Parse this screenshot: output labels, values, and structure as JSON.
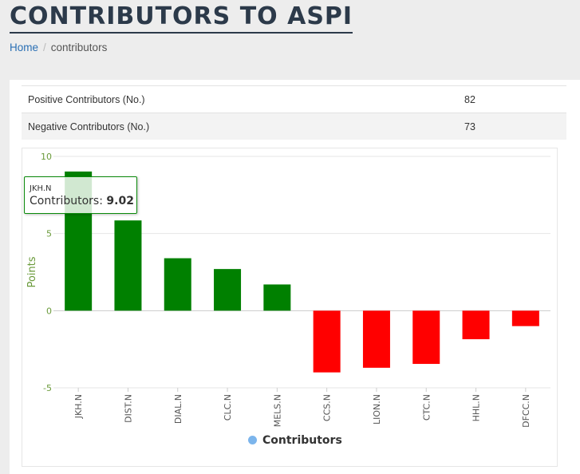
{
  "page": {
    "title": "CONTRIBUTORS TO ASPI",
    "breadcrumb": {
      "home": "Home",
      "separator": "/",
      "current": "contributors"
    }
  },
  "stats": [
    {
      "label": "Positive Contributors (No.)",
      "value": "82"
    },
    {
      "label": "Negative Contributors (No.)",
      "value": "73"
    }
  ],
  "colors": {
    "positive": "#008000",
    "negative": "#ff0000",
    "legend_marker": "#7cb5ec",
    "axis_label": "#6a9a3a"
  },
  "tooltip": {
    "category": "JKH.N",
    "series_label": "Contributors:",
    "value": "9.02"
  },
  "chart_data": {
    "type": "bar",
    "title": "",
    "xlabel": "",
    "ylabel": "Points",
    "ylim": [
      -5,
      10
    ],
    "yticks": [
      10,
      5,
      0,
      -5
    ],
    "categories": [
      "JKH.N",
      "DIST.N",
      "DIAL.N",
      "CLC.N",
      "MELS.N",
      "CCS.N",
      "LION.N",
      "CTC.N",
      "HHL.N",
      "DFCC.N"
    ],
    "series": [
      {
        "name": "Contributors",
        "values": [
          9.02,
          5.85,
          3.4,
          2.7,
          1.7,
          -4.0,
          -3.7,
          -3.45,
          -1.85,
          -1.0
        ]
      }
    ],
    "legend": "bottom-center"
  }
}
